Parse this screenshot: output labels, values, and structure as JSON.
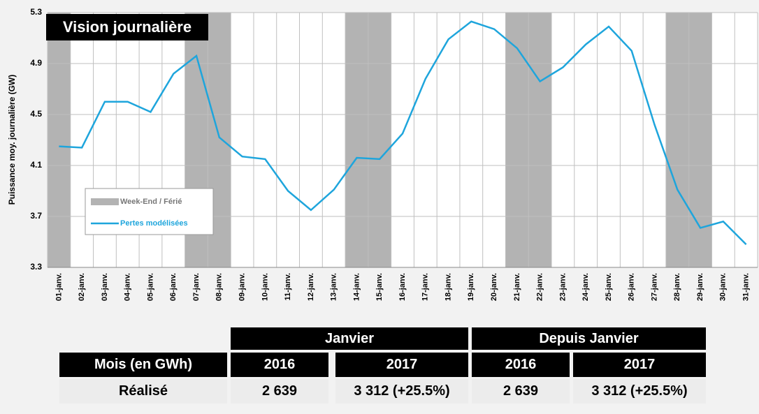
{
  "chart_data": {
    "type": "line",
    "title": "Vision journalière",
    "y_label": "Puissance moy. journalière (GW)",
    "categories": [
      "01-janv.",
      "02-janv.",
      "03-janv.",
      "04-janv.",
      "05-janv.",
      "06-janv.",
      "07-janv.",
      "08-janv.",
      "09-janv.",
      "10-janv.",
      "11-janv.",
      "12-janv.",
      "13-janv.",
      "14-janv.",
      "15-janv.",
      "16-janv.",
      "17-janv.",
      "18-janv.",
      "19-janv.",
      "20-janv.",
      "21-janv.",
      "22-janv.",
      "23-janv.",
      "24-janv.",
      "25-janv.",
      "26-janv.",
      "27-janv.",
      "28-janv.",
      "29-janv.",
      "30-janv.",
      "31-janv."
    ],
    "series": [
      {
        "name": "Week-End / Férié",
        "color": "#b3b3b3",
        "kind": "band",
        "values": [
          true,
          false,
          false,
          false,
          false,
          false,
          true,
          true,
          false,
          false,
          false,
          false,
          false,
          true,
          true,
          false,
          false,
          false,
          false,
          false,
          true,
          true,
          false,
          false,
          false,
          false,
          false,
          true,
          true,
          false,
          false
        ]
      },
      {
        "name": "Pertes modélisées",
        "color": "#1ea5dc",
        "values": [
          4.25,
          4.24,
          4.6,
          4.6,
          4.52,
          4.82,
          4.96,
          4.32,
          4.17,
          4.15,
          3.9,
          3.75,
          3.91,
          4.16,
          4.15,
          4.35,
          4.78,
          5.09,
          5.23,
          5.17,
          5.02,
          4.76,
          4.87,
          5.05,
          5.19,
          5.0,
          4.42,
          3.91,
          3.61,
          3.66,
          3.48
        ]
      }
    ],
    "ylim": [
      3.3,
      5.3
    ],
    "yticks": [
      3.3,
      3.7,
      4.1,
      4.5,
      4.9,
      5.3
    ],
    "grid": true
  },
  "table": {
    "groups": [
      "Janvier",
      "Depuis Janvier"
    ],
    "header": [
      "Mois (en GWh)",
      "2016",
      "2017",
      "2016",
      "2017"
    ],
    "rows": [
      [
        "Réalisé",
        "2 639",
        "3 312 (+25.5%)",
        "2 639",
        "3 312 (+25.5%)"
      ]
    ]
  }
}
